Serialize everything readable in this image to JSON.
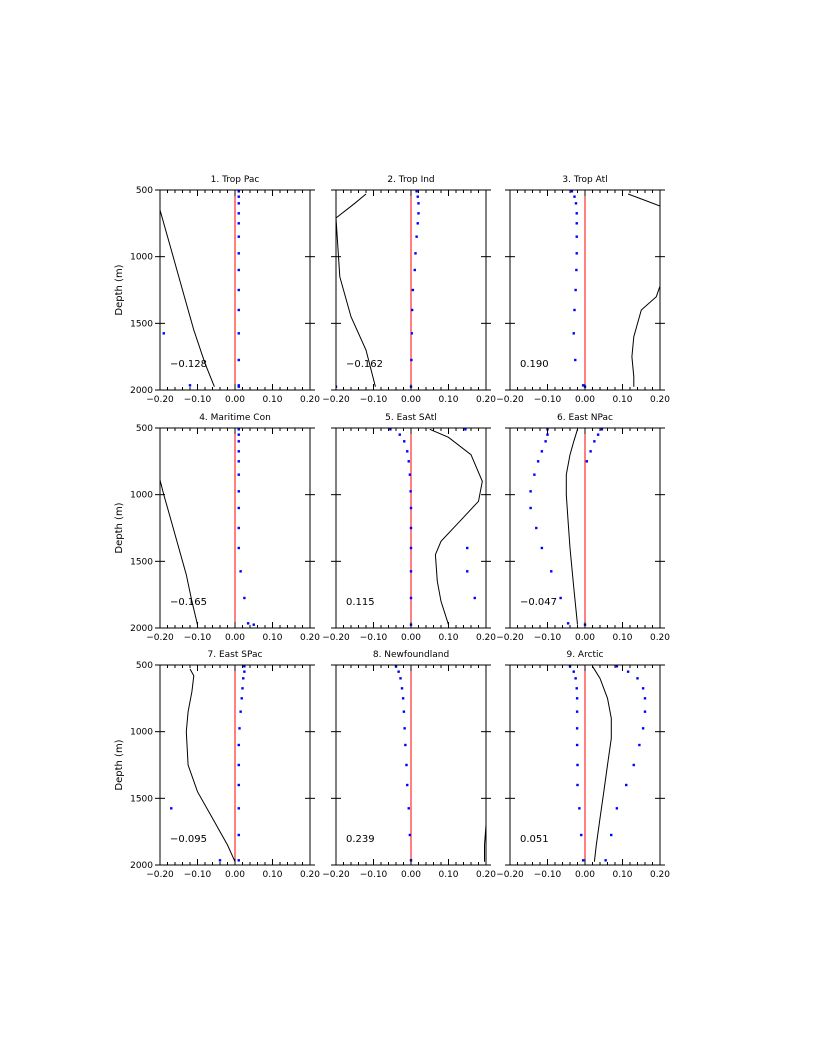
{
  "figure": {
    "ylabel": "Depth (m)",
    "colors": {
      "zero_line": "#ff0000",
      "dots": "#0000ff",
      "curve": "#000000",
      "axes": "#000000"
    }
  },
  "chart_data": [
    {
      "type": "line",
      "title": "1. Trop Pac",
      "annotation": "−0.128",
      "xlim": [
        -0.2,
        0.2
      ],
      "ylim": [
        500,
        2000
      ],
      "xticks": [
        "−0.20",
        "−0.10",
        "0.00",
        "0.10",
        "0.20"
      ],
      "yticks": [
        "500",
        "1000",
        "1500",
        "2000"
      ],
      "curve": {
        "x": [
          -0.2,
          -0.195,
          -0.17,
          -0.14,
          -0.11,
          -0.08,
          -0.055
        ],
        "y": [
          650,
          700,
          950,
          1250,
          1550,
          1800,
          1975
        ]
      },
      "dots": {
        "x": [
          0.01,
          0.01,
          0.01,
          0.01,
          0.01,
          0.01,
          0.01,
          0.01,
          0.01,
          0.01,
          0.01,
          0.01,
          0.01,
          0.01,
          -0.19,
          -0.12
        ],
        "y": [
          510,
          550,
          600,
          675,
          750,
          850,
          975,
          1100,
          1250,
          1400,
          1575,
          1775,
          1965,
          1975,
          1575,
          1965
        ]
      }
    },
    {
      "type": "line",
      "title": "2. Trop Ind",
      "annotation": "−0.162",
      "xlim": [
        -0.2,
        0.2
      ],
      "ylim": [
        500,
        2000
      ],
      "xticks": [
        "−0.20",
        "−0.10",
        "0.00",
        "0.10",
        "0.20"
      ],
      "yticks": [
        "500",
        "1000",
        "1500",
        "2000"
      ],
      "curve": {
        "x": [
          -0.12,
          -0.15,
          -0.2,
          -0.19,
          -0.16,
          -0.12,
          -0.095
        ],
        "y": [
          530,
          600,
          710,
          1150,
          1450,
          1700,
          1975
        ]
      },
      "dots": {
        "x": [
          0.015,
          0.018,
          0.02,
          0.02,
          0.018,
          0.015,
          0.012,
          0.01,
          0.005,
          0.003,
          0.002,
          0.001,
          0.0,
          -0.2
        ],
        "y": [
          510,
          550,
          600,
          675,
          750,
          850,
          975,
          1100,
          1250,
          1400,
          1575,
          1775,
          1975,
          1975
        ]
      }
    },
    {
      "type": "line",
      "title": "3. Trop Atl",
      "annotation": "0.190",
      "xlim": [
        -0.2,
        0.2
      ],
      "ylim": [
        500,
        2000
      ],
      "xticks": [
        "−0.20",
        "−0.10",
        "0.00",
        "0.10",
        "0.20"
      ],
      "yticks": [
        "500",
        "1000",
        "1500",
        "2000"
      ],
      "curve_segments": [
        {
          "x": [
            0.115,
            0.2
          ],
          "y": [
            530,
            620
          ]
        },
        {
          "x": [
            0.2,
            0.19,
            0.15,
            0.13,
            0.125,
            0.13,
            0.13
          ],
          "y": [
            1220,
            1300,
            1400,
            1600,
            1750,
            1900,
            1975
          ]
        }
      ],
      "dots": {
        "x": [
          -0.035,
          -0.028,
          -0.024,
          -0.022,
          -0.022,
          -0.022,
          -0.022,
          -0.023,
          -0.025,
          -0.028,
          -0.03,
          -0.026,
          -0.005,
          0.0
        ],
        "y": [
          510,
          550,
          600,
          675,
          750,
          850,
          975,
          1100,
          1250,
          1400,
          1575,
          1775,
          1965,
          1975
        ]
      }
    },
    {
      "type": "line",
      "title": "4. Maritime Con",
      "annotation": "−0.165",
      "xlim": [
        -0.2,
        0.2
      ],
      "ylim": [
        500,
        2000
      ],
      "xticks": [
        "−0.20",
        "−0.10",
        "0.00",
        "0.10",
        "0.20"
      ],
      "yticks": [
        "500",
        "1000",
        "1500",
        "2000"
      ],
      "curve": {
        "x": [
          -0.2,
          -0.19,
          -0.17,
          -0.15,
          -0.13,
          -0.115,
          -0.1
        ],
        "y": [
          890,
          1000,
          1200,
          1400,
          1600,
          1800,
          1975
        ]
      },
      "dots": {
        "x": [
          0.01,
          0.01,
          0.01,
          0.01,
          0.01,
          0.01,
          0.01,
          0.01,
          0.01,
          0.01,
          0.015,
          0.025,
          0.035,
          0.05
        ],
        "y": [
          510,
          550,
          600,
          675,
          750,
          850,
          975,
          1100,
          1250,
          1400,
          1575,
          1775,
          1965,
          1975
        ]
      }
    },
    {
      "type": "line",
      "title": "5. East SAtl",
      "annotation": "0.115",
      "xlim": [
        -0.2,
        0.2
      ],
      "ylim": [
        500,
        2000
      ],
      "xticks": [
        "−0.20",
        "−0.10",
        "0.00",
        "0.10",
        "0.20"
      ],
      "yticks": [
        "500",
        "1000",
        "1500",
        "2000"
      ],
      "curve": {
        "x": [
          0.05,
          0.1,
          0.16,
          0.19,
          0.18,
          0.13,
          0.08,
          0.065,
          0.07,
          0.08,
          0.1
        ],
        "y": [
          510,
          570,
          700,
          900,
          1050,
          1200,
          1350,
          1450,
          1650,
          1800,
          1975
        ]
      },
      "dots": {
        "x": [
          -0.055,
          -0.03,
          -0.018,
          -0.01,
          -0.006,
          -0.003,
          -0.001,
          0.0,
          0.0,
          0.0,
          0.0,
          0.0,
          0.0,
          0.145,
          0.15,
          0.15,
          0.17
        ],
        "y": [
          510,
          550,
          600,
          675,
          750,
          850,
          975,
          1100,
          1250,
          1400,
          1575,
          1775,
          1975,
          510,
          1400,
          1575,
          1775
        ]
      }
    },
    {
      "type": "line",
      "title": "6. East NPac",
      "annotation": "−0.047",
      "xlim": [
        -0.2,
        0.2
      ],
      "ylim": [
        500,
        2000
      ],
      "xticks": [
        "−0.20",
        "−0.10",
        "0.00",
        "0.10",
        "0.20"
      ],
      "yticks": [
        "500",
        "1000",
        "1500",
        "2000"
      ],
      "curve": {
        "x": [
          -0.02,
          -0.03,
          -0.04,
          -0.05,
          -0.05,
          -0.045,
          -0.04,
          -0.03,
          -0.02
        ],
        "y": [
          510,
          600,
          700,
          850,
          1000,
          1200,
          1400,
          1700,
          1975
        ]
      },
      "dots": {
        "x": [
          -0.1,
          -0.1,
          -0.105,
          -0.115,
          -0.125,
          -0.135,
          -0.145,
          -0.145,
          -0.13,
          -0.115,
          -0.09,
          -0.065,
          -0.045,
          0.045,
          0.035,
          0.025,
          0.015,
          0.005,
          0.0
        ],
        "y": [
          510,
          550,
          600,
          675,
          750,
          850,
          975,
          1100,
          1250,
          1400,
          1575,
          1775,
          1965,
          510,
          550,
          600,
          675,
          750,
          1975
        ]
      }
    },
    {
      "type": "line",
      "title": "7. East SPac",
      "annotation": "−0.095",
      "xlim": [
        -0.2,
        0.2
      ],
      "ylim": [
        500,
        2000
      ],
      "xticks": [
        "−0.20",
        "−0.10",
        "0.00",
        "0.10",
        "0.20"
      ],
      "yticks": [
        "500",
        "1000",
        "1500",
        "2000"
      ],
      "curve": {
        "x": [
          -0.12,
          -0.11,
          -0.115,
          -0.125,
          -0.13,
          -0.125,
          -0.1,
          -0.06,
          -0.02,
          0.0
        ],
        "y": [
          530,
          580,
          700,
          850,
          1000,
          1250,
          1450,
          1650,
          1850,
          1975
        ]
      },
      "dots": {
        "x": [
          0.025,
          0.025,
          0.022,
          0.02,
          0.018,
          0.015,
          0.012,
          0.01,
          0.01,
          0.01,
          0.01,
          0.01,
          0.01,
          -0.17,
          -0.04
        ],
        "y": [
          510,
          550,
          600,
          675,
          750,
          850,
          975,
          1100,
          1250,
          1400,
          1575,
          1775,
          1965,
          1575,
          1965
        ]
      }
    },
    {
      "type": "line",
      "title": "8. Newfoundland",
      "annotation": "0.239",
      "xlim": [
        -0.2,
        0.2
      ],
      "ylim": [
        500,
        2000
      ],
      "xticks": [
        "−0.20",
        "−0.10",
        "0.00",
        "0.10",
        "0.20"
      ],
      "yticks": [
        "500",
        "1000",
        "1500",
        "2000"
      ],
      "curve": {
        "x": [
          0.2,
          0.196,
          0.196
        ],
        "y": [
          1700,
          1850,
          1975
        ]
      },
      "dots": {
        "x": [
          -0.04,
          -0.033,
          -0.028,
          -0.024,
          -0.021,
          -0.019,
          -0.017,
          -0.015,
          -0.012,
          -0.01,
          -0.006,
          -0.003,
          0.0
        ],
        "y": [
          510,
          550,
          600,
          675,
          750,
          850,
          975,
          1100,
          1250,
          1400,
          1575,
          1775,
          1965
        ]
      }
    },
    {
      "type": "line",
      "title": "9. Arctic",
      "annotation": "0.051",
      "xlim": [
        -0.2,
        0.2
      ],
      "ylim": [
        500,
        2000
      ],
      "xticks": [
        "−0.20",
        "−0.10",
        "0.00",
        "0.10",
        "0.20"
      ],
      "yticks": [
        "500",
        "1000",
        "1500",
        "2000"
      ],
      "curve": {
        "x": [
          0.02,
          0.04,
          0.06,
          0.07,
          0.07,
          0.06,
          0.05,
          0.04,
          0.03,
          0.025
        ],
        "y": [
          510,
          600,
          750,
          900,
          1050,
          1250,
          1450,
          1650,
          1850,
          1975
        ]
      },
      "dots": {
        "x": [
          -0.04,
          -0.03,
          -0.025,
          -0.022,
          -0.021,
          -0.021,
          -0.021,
          -0.021,
          -0.02,
          -0.02,
          -0.015,
          -0.01,
          -0.005,
          0.085,
          0.115,
          0.14,
          0.155,
          0.16,
          0.16,
          0.155,
          0.145,
          0.13,
          0.11,
          0.085,
          0.07,
          0.055
        ],
        "y": [
          510,
          550,
          600,
          675,
          750,
          850,
          975,
          1100,
          1250,
          1400,
          1575,
          1775,
          1965,
          510,
          550,
          600,
          675,
          750,
          850,
          975,
          1100,
          1250,
          1400,
          1575,
          1775,
          1965
        ]
      }
    }
  ]
}
